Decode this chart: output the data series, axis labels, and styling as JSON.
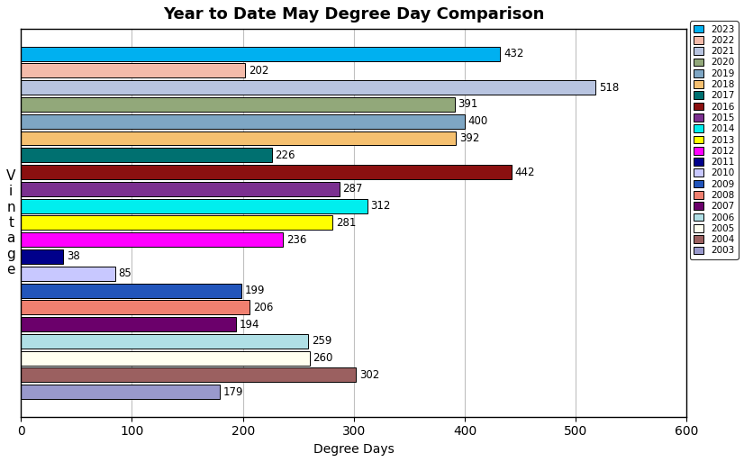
{
  "title": "Year to Date May Degree Day Comparison",
  "xlabel": "Degree Days",
  "ylabel": "V\ni\nn\nt\na\ng\ne",
  "xlim": [
    0,
    600
  ],
  "xticks": [
    0,
    100,
    200,
    300,
    400,
    500,
    600
  ],
  "years": [
    "2023",
    "2022",
    "2021",
    "2020",
    "2019",
    "2018",
    "2017",
    "2016",
    "2015",
    "2014",
    "2013",
    "2012",
    "2011",
    "2010",
    "2009",
    "2008",
    "2007",
    "2006",
    "2005",
    "2004",
    "2003"
  ],
  "values": [
    432,
    202,
    518,
    391,
    400,
    392,
    226,
    442,
    287,
    312,
    281,
    236,
    38,
    85,
    199,
    206,
    194,
    259,
    260,
    302,
    179
  ],
  "colors": [
    "#00B0F0",
    "#F4BBAA",
    "#B8C4E0",
    "#92A87A",
    "#7EA6C4",
    "#F5C070",
    "#007070",
    "#8B1010",
    "#7B3090",
    "#00EEEE",
    "#FFFF00",
    "#FF00FF",
    "#00008B",
    "#C8C8FF",
    "#2255BB",
    "#F08070",
    "#6B006B",
    "#B0E0E6",
    "#FFFFF0",
    "#9B6060",
    "#9999CC"
  ],
  "background_color": "#FFFFFF",
  "plot_bg_color": "#FFFFFF",
  "grid_color": "#C0C0C0"
}
